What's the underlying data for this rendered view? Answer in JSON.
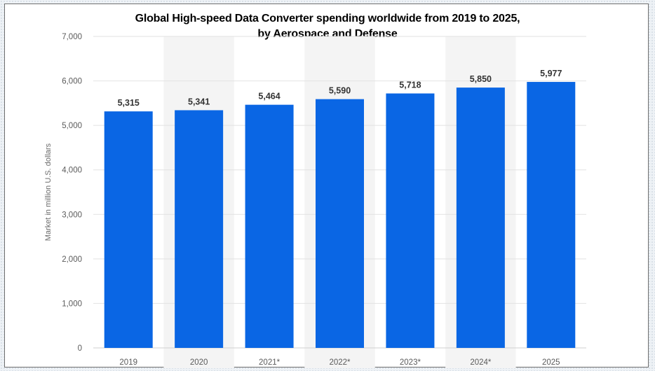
{
  "chart_data": {
    "type": "bar",
    "title_lines": [
      "Global High-speed Data Converter spending worldwide from 2019 to 2025,",
      "by Aerospace and Defense"
    ],
    "xlabel": "",
    "ylabel": "Market in million U.S. dollars",
    "categories": [
      "2019",
      "2020",
      "2021*",
      "2022*",
      "2023*",
      "2024*",
      "2025"
    ],
    "values": [
      5315,
      5341,
      5464,
      5590,
      5718,
      5850,
      5977
    ],
    "value_labels": [
      "5,315",
      "5,341",
      "5,464",
      "5,590",
      "5,718",
      "5,850",
      "5,977"
    ],
    "ylim": [
      0,
      7000
    ],
    "yticks": [
      0,
      1000,
      2000,
      3000,
      4000,
      5000,
      6000,
      7000
    ],
    "ytick_labels": [
      "0",
      "1,000",
      "2,000",
      "3,000",
      "4,000",
      "5,000",
      "6,000",
      "7,000"
    ],
    "grid": true,
    "legend": "none",
    "colors": {
      "bar": "#0a66e4",
      "alt_band": "#f4f4f4",
      "grid": "#e2e2e2"
    }
  }
}
